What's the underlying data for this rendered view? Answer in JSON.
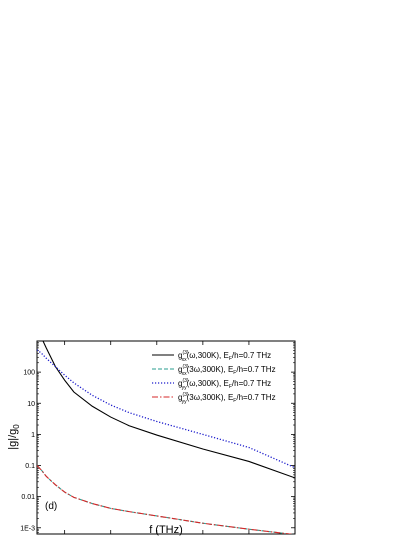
{
  "chart_data": {
    "type": "line",
    "panel_label": "(d)",
    "xlabel": "f (THz)",
    "ylabel": "|g|/g",
    "ylabel_sub": "0",
    "xlim": [
      0.2,
      3.0
    ],
    "ylim_log10": [
      -3.2,
      3.0
    ],
    "y_scale": "log",
    "x_ticks": [
      {
        "v": 0.5,
        "label": "0.5"
      },
      {
        "v": 1.0,
        "label": "1.0"
      },
      {
        "v": 1.5,
        "label": "1.5"
      },
      {
        "v": 2.0,
        "label": "2.0"
      },
      {
        "v": 2.5,
        "label": "2.5"
      },
      {
        "v": 3.0,
        "label": "3.0"
      }
    ],
    "y_ticks": [
      {
        "e": 2,
        "label": "100"
      },
      {
        "e": 1,
        "label": "10"
      },
      {
        "e": 0,
        "label": "1"
      },
      {
        "e": -1,
        "label": "0.1"
      },
      {
        "e": -2,
        "label": "0.01"
      },
      {
        "e": -3,
        "label": "1E-3"
      }
    ],
    "legend_position": "top-right",
    "series": [
      {
        "legend": {
          "g": "g",
          "sup": "(3)",
          "sub": "xx",
          "rest": "(ω,300K), E",
          "sub2": "F",
          "tail": "/h=0.7 THz"
        },
        "color": "#000000",
        "dash": "",
        "width": 1.1,
        "x": [
          0.2,
          0.25,
          0.3,
          0.4,
          0.5,
          0.6,
          0.8,
          1.0,
          1.2,
          1.5,
          2.0,
          2.5,
          3.0
        ],
        "y": [
          2200,
          1250,
          600,
          150,
          55,
          23,
          8,
          3.6,
          1.9,
          0.95,
          0.34,
          0.135,
          0.04
        ]
      },
      {
        "legend": {
          "g": "g",
          "sup": "(3)",
          "sub": "xx",
          "rest": "(3ω,300K), E",
          "sub2": "F",
          "tail": "/h=0.7 THz"
        },
        "color": "#2a9d8f",
        "dash": "4,2",
        "width": 1.1,
        "x": [
          0.2,
          0.25,
          0.3,
          0.4,
          0.5,
          0.6,
          0.8,
          1.0,
          1.2,
          1.5,
          2.0,
          2.5,
          3.0
        ],
        "y": [
          0.1,
          0.07,
          0.045,
          0.024,
          0.014,
          0.0095,
          0.006,
          0.0042,
          0.0033,
          0.0024,
          0.0014,
          0.0009,
          0.0006
        ]
      },
      {
        "legend": {
          "g": "g",
          "sup": "(3)",
          "sub": "yy",
          "rest": "(ω,300K), E",
          "sub2": "F",
          "tail": "/h=0.7 THz"
        },
        "color": "#1a1acc",
        "dash": "1.2,1.8",
        "width": 1.3,
        "x": [
          0.2,
          0.25,
          0.3,
          0.4,
          0.5,
          0.6,
          0.8,
          1.0,
          1.2,
          1.5,
          2.0,
          2.5,
          3.0
        ],
        "y": [
          520,
          400,
          280,
          150,
          80,
          45,
          18,
          8.8,
          5.0,
          2.6,
          1.0,
          0.38,
          0.085
        ]
      },
      {
        "legend": {
          "g": "g",
          "sup": "(3)",
          "sub": "yy",
          "rest": "(3ω,300K), E",
          "sub2": "F",
          "tail": "/h=0.7 THz"
        },
        "color": "#d62728",
        "dash": "6,2,1.5,2",
        "width": 1.1,
        "x": [
          0.2,
          0.25,
          0.3,
          0.4,
          0.5,
          0.6,
          0.8,
          1.0,
          1.2,
          1.5,
          2.0,
          2.5,
          3.0
        ],
        "y": [
          0.1,
          0.07,
          0.045,
          0.024,
          0.014,
          0.0095,
          0.006,
          0.0042,
          0.0033,
          0.0024,
          0.0014,
          0.0009,
          0.0006
        ]
      }
    ]
  }
}
